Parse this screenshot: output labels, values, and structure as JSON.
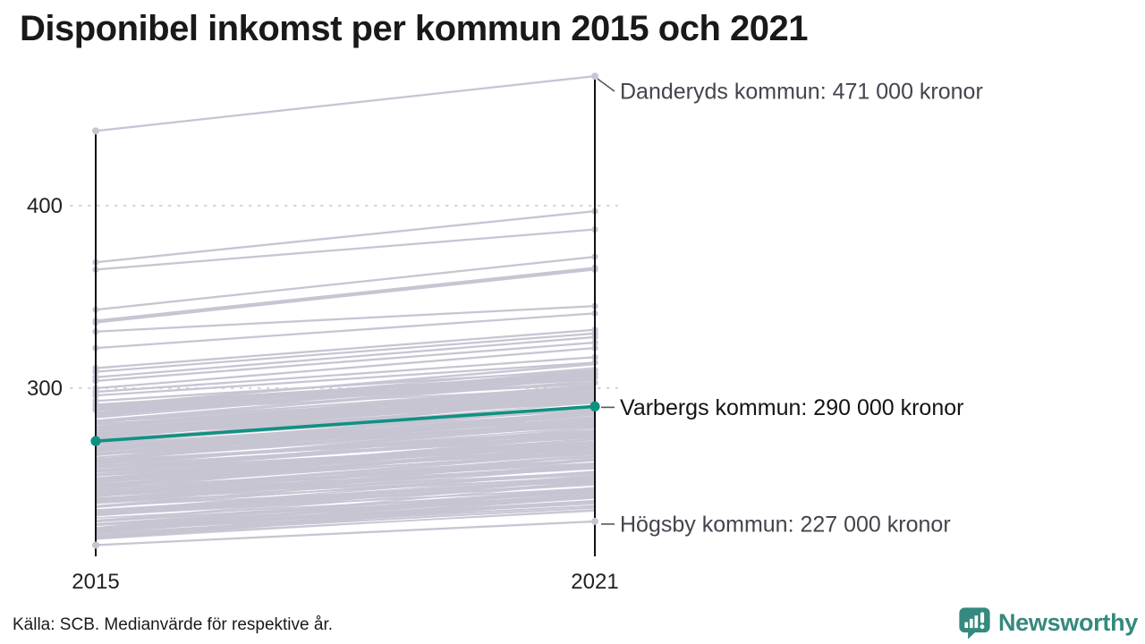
{
  "title": "Disponibel inkomst per kommun 2015 och 2021",
  "source": "Källa: SCB. Medianvärde för respektive år.",
  "brand": {
    "name": "Newsworthy",
    "icon": "newsworthy-speech-bubble-chart-icon",
    "color": "#35897E"
  },
  "chart_data": {
    "type": "line",
    "subtype": "slope-chart",
    "x": [
      "2015",
      "2021"
    ],
    "y_ticks": [
      300,
      400
    ],
    "ylim": [
      208,
      475
    ],
    "unit": "tusen kronor",
    "grid": "dotted-horizontal",
    "legend": "none",
    "annotations": [
      {
        "label": "Danderyds kommun: 471 000 kronor",
        "values_thousand_kronor": [
          441,
          471
        ],
        "highlight": false,
        "connector": "diagonal",
        "label_dy": 17
      },
      {
        "label": "Varbergs kommun: 290 000 kronor",
        "values_thousand_kronor": [
          271,
          290
        ],
        "highlight": true,
        "connector": "horizontal",
        "label_dy": 1
      },
      {
        "label": "Högsby kommun: 227 000 kronor",
        "values_thousand_kronor": [
          214,
          227
        ],
        "highlight": false,
        "connector": "horizontal",
        "label_dy": 3
      }
    ],
    "upper_lines": [
      [
        369,
        397
      ],
      [
        365,
        387
      ],
      [
        343,
        372
      ],
      [
        337,
        366
      ],
      [
        336,
        365
      ],
      [
        331,
        345
      ],
      [
        322,
        341
      ],
      [
        311,
        332
      ],
      [
        309,
        330
      ],
      [
        306,
        328
      ],
      [
        304,
        325
      ],
      [
        300,
        322
      ],
      [
        298,
        317
      ],
      [
        296,
        314
      ],
      [
        293,
        310
      ],
      [
        291,
        308
      ],
      [
        289,
        306
      ],
      [
        288,
        303
      ]
    ],
    "background_band": {
      "description": "remaining municipalities, individually unreadable dense bundle",
      "count": 252,
      "seed": 7,
      "start_min": 217,
      "start_max": 291,
      "split_low_share": 0.84,
      "split_at": 278,
      "rise_min": 13,
      "rise_max": 25
    },
    "colors": {
      "line": "#c7c5d2",
      "highlight": "#0f9182",
      "axis": "#111111",
      "grid": "#d6d6db",
      "label": "#44444e",
      "highlight_label": "#141414",
      "tick": "#222222"
    }
  }
}
